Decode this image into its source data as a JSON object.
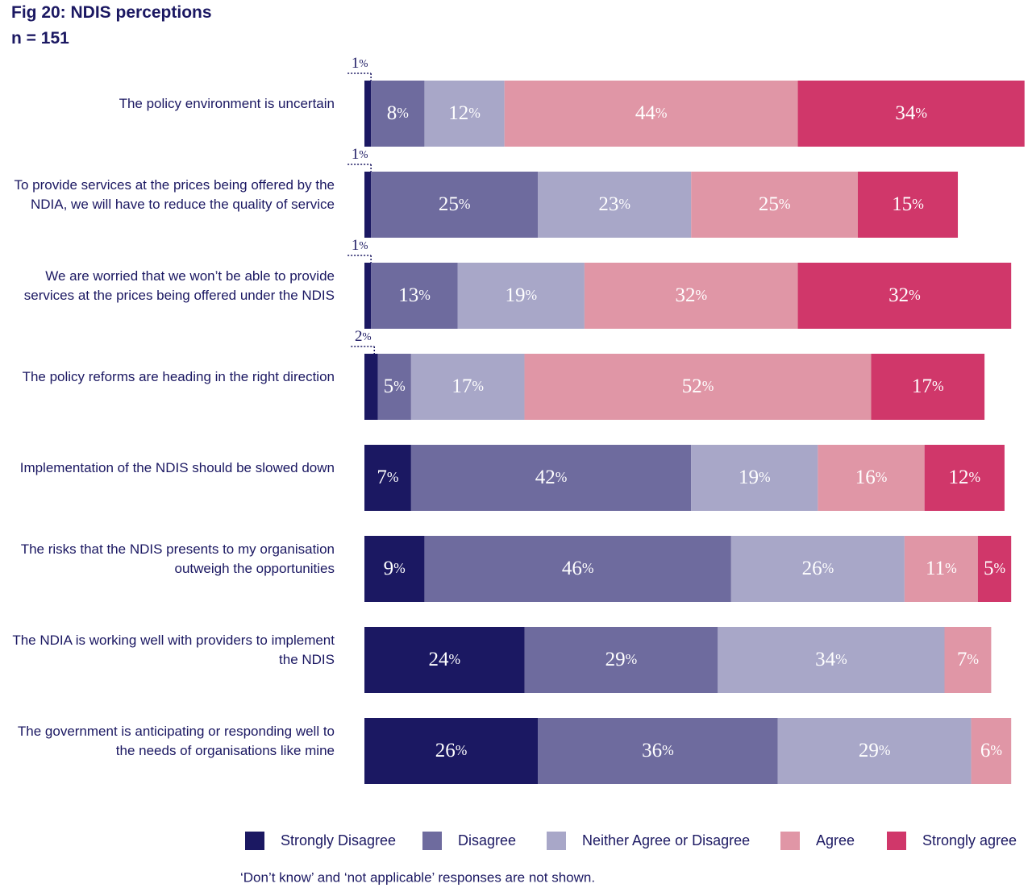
{
  "chart_data": {
    "type": "bar",
    "orientation": "horizontal",
    "stacked": true,
    "title": "Fig 20: NDIS perceptions",
    "subtitle": "n = 151",
    "categories": [
      "The policy environment is uncertain",
      "To provide services at the prices being offered by the NDIA, we will have to reduce the quality of service",
      "We are worried that we won’t be able to provide services at the prices being offered under the NDIS",
      "The policy reforms are heading in the right direction",
      "Implementation of the NDIS should be slowed down",
      "The risks that the NDIS presents to my organisation outweigh the opportunities",
      "The NDIA is working well with providers to implement the NDIS",
      "The government is anticipating or responding well to the needs of organisations like mine"
    ],
    "series": [
      {
        "name": "Strongly Disagree",
        "color": "#1b1862",
        "values": [
          1,
          1,
          1,
          2,
          7,
          9,
          24,
          26
        ],
        "value_labels": [
          "1%",
          "1%",
          "1%",
          "2%",
          "7%",
          "9%",
          "24%",
          "26%"
        ]
      },
      {
        "name": "Disagree",
        "color": "#6e6b9e",
        "values": [
          8,
          25,
          13,
          5,
          42,
          46,
          29,
          36
        ],
        "value_labels": [
          "8%",
          "25%",
          "13%",
          "5%",
          "42%",
          "46%",
          "29%",
          "36%"
        ]
      },
      {
        "name": "Neither Agree or Disagree",
        "color": "#a8a7c8",
        "values": [
          12,
          23,
          19,
          17,
          19,
          26,
          34,
          29
        ],
        "value_labels": [
          "12%",
          "23%",
          "19%",
          "17%",
          "19%",
          "26%",
          "34%",
          "29%"
        ]
      },
      {
        "name": "Agree",
        "color": "#e096a6",
        "values": [
          44,
          25,
          32,
          52,
          16,
          11,
          7,
          6
        ],
        "value_labels": [
          "44%",
          "25%",
          "32%",
          "52%",
          "16%",
          "11%",
          "7%",
          "6%"
        ]
      },
      {
        "name": "Strongly agree",
        "color": "#d0376a",
        "values": [
          34,
          15,
          32,
          17,
          12,
          5,
          null,
          null
        ],
        "value_labels": [
          "34%",
          "15%",
          "32%",
          "17%",
          "12%",
          "5%",
          null,
          null
        ]
      }
    ],
    "legend": "bottom",
    "note": "‘Don’t know’ and ‘not applicable’ responses are not shown."
  }
}
